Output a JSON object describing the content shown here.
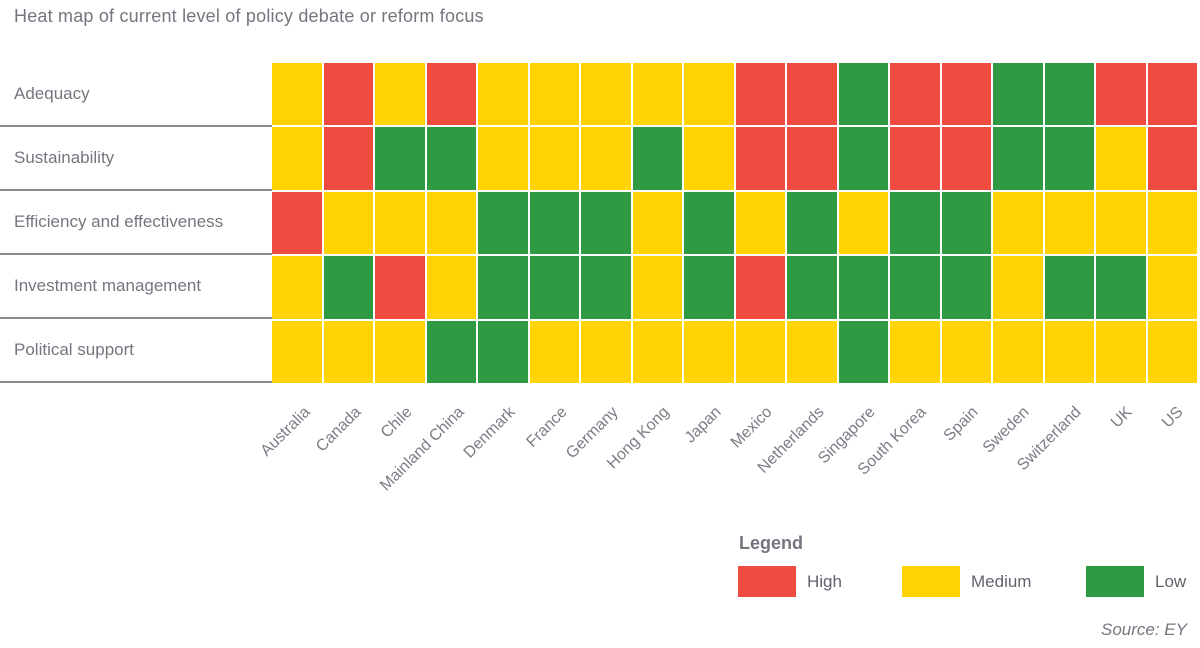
{
  "title": "Heat map of current level of policy debate or reform focus",
  "source": "Source: EY",
  "legend": {
    "heading": "Legend",
    "items": [
      {
        "label": "High",
        "level": "High"
      },
      {
        "label": "Medium",
        "level": "Medium"
      },
      {
        "label": "Low",
        "level": "Low"
      }
    ]
  },
  "colors": {
    "High": "#ef4b40",
    "Medium": "#ffd402",
    "Low": "#2e9a44"
  },
  "chart_data": {
    "type": "heatmap",
    "title": "Heat map of current level of policy debate or reform focus",
    "rows": [
      "Adequacy",
      "Sustainability",
      "Efficiency and effectiveness",
      "Investment management",
      "Political support"
    ],
    "columns": [
      "Australia",
      "Canada",
      "Chile",
      "Mainland China",
      "Denmark",
      "France",
      "Germany",
      "Hong Kong",
      "Japan",
      "Mexico",
      "Netherlands",
      "Singapore",
      "South Korea",
      "Spain",
      "Sweden",
      "Switzerland",
      "UK",
      "US"
    ],
    "scale": [
      "High",
      "Medium",
      "Low"
    ],
    "values": [
      [
        "Medium",
        "High",
        "Medium",
        "High",
        "Medium",
        "Medium",
        "Medium",
        "Medium",
        "Medium",
        "High",
        "High",
        "Low",
        "High",
        "High",
        "Low",
        "Low",
        "High",
        "High"
      ],
      [
        "Medium",
        "High",
        "Low",
        "Low",
        "Medium",
        "Medium",
        "Medium",
        "Low",
        "Medium",
        "High",
        "High",
        "Low",
        "High",
        "High",
        "Low",
        "Low",
        "Medium",
        "High"
      ],
      [
        "High",
        "Medium",
        "Medium",
        "Medium",
        "Low",
        "Low",
        "Low",
        "Medium",
        "Low",
        "Medium",
        "Low",
        "Medium",
        "Low",
        "Low",
        "Medium",
        "Medium",
        "Medium",
        "Medium"
      ],
      [
        "Medium",
        "Low",
        "High",
        "Medium",
        "Low",
        "Low",
        "Low",
        "Medium",
        "Low",
        "High",
        "Low",
        "Low",
        "Low",
        "Low",
        "Medium",
        "Low",
        "Low",
        "Medium"
      ],
      [
        "Medium",
        "Medium",
        "Medium",
        "Low",
        "Low",
        "Medium",
        "Medium",
        "Medium",
        "Medium",
        "Medium",
        "Medium",
        "Low",
        "Medium",
        "Medium",
        "Medium",
        "Medium",
        "Medium",
        "Medium"
      ]
    ]
  }
}
